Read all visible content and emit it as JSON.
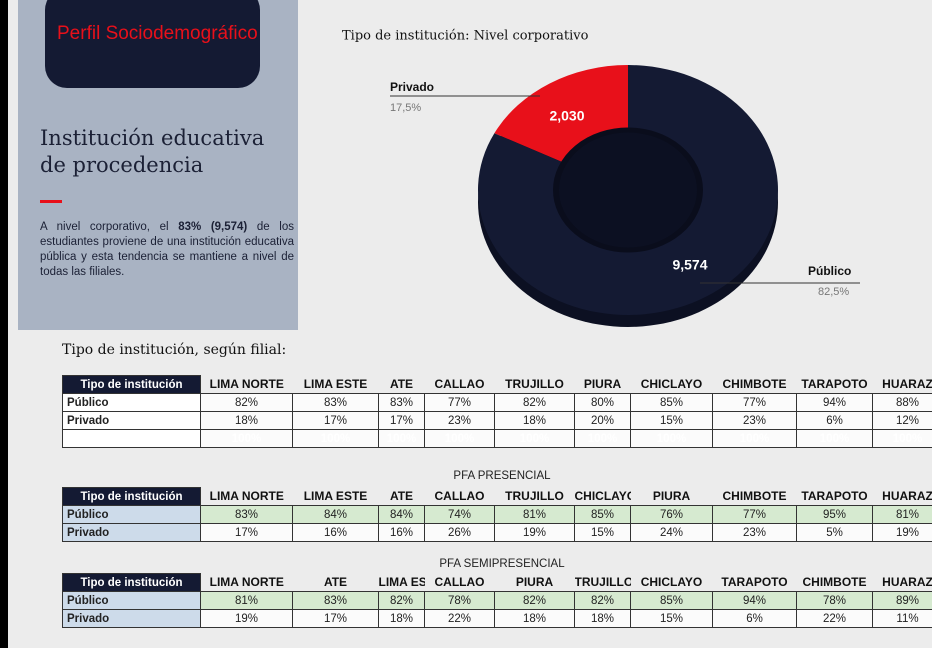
{
  "sidebar": {
    "badge": "Perfil Sociodemográfico",
    "heading": "Institución educativa de procedencia",
    "paragraph": [
      "A nivel corporativo, el ",
      "83% (9,574)",
      " de los estudiantes proviene de una institución educativa pública y esta tendencia se mantiene a nivel de todas las filiales."
    ]
  },
  "chart_data": {
    "type": "pie",
    "title": "Tipo de institución: Nivel corporativo",
    "categories": [
      "Privado",
      "Público"
    ],
    "values": [
      2030,
      9574
    ],
    "value_labels": [
      "2,030",
      "9,574"
    ],
    "shares": [
      17.5,
      82.5
    ],
    "share_labels": [
      "17,5%",
      "82,5%"
    ],
    "colors": [
      "#e8101a",
      "#141a33"
    ]
  },
  "section_title": "Tipo de institución, según filial:",
  "tables": [
    {
      "header": [
        "Tipo de institución",
        "LIMA NORTE",
        "LIMA ESTE",
        "ATE",
        "CALLAO",
        "TRUJILLO",
        "PIURA",
        "CHICLAYO",
        "CHIMBOTE",
        "TARAPOTO",
        "HUARAZ"
      ],
      "rows": [
        [
          "Público",
          "82%",
          "83%",
          "83%",
          "77%",
          "82%",
          "80%",
          "85%",
          "77%",
          "94%",
          "88%"
        ],
        [
          "Privado",
          "18%",
          "17%",
          "17%",
          "23%",
          "18%",
          "20%",
          "15%",
          "23%",
          "6%",
          "12%"
        ],
        [
          "Total general",
          "100%",
          "100%",
          "100%",
          "100%",
          "100%",
          "100%",
          "100%",
          "100%",
          "100%",
          "100%"
        ]
      ]
    },
    {
      "caption": "PFA PRESENCIAL",
      "header": [
        "Tipo de institución",
        "LIMA NORTE",
        "LIMA ESTE",
        "ATE",
        "CALLAO",
        "TRUJILLO",
        "CHICLAYO",
        "PIURA",
        "CHIMBOTE",
        "TARAPOTO",
        "HUARAZ"
      ],
      "rows": [
        [
          "Público",
          "83%",
          "84%",
          "84%",
          "74%",
          "81%",
          "85%",
          "76%",
          "77%",
          "95%",
          "81%"
        ],
        [
          "Privado",
          "17%",
          "16%",
          "16%",
          "26%",
          "19%",
          "15%",
          "24%",
          "23%",
          "5%",
          "19%"
        ]
      ]
    },
    {
      "caption": "PFA SEMIPRESENCIAL",
      "header": [
        "Tipo de institución",
        "LIMA NORTE",
        "ATE",
        "LIMA ESTE",
        "CALLAO",
        "PIURA",
        "TRUJILLO",
        "CHICLAYO",
        "TARAPOTO",
        "CHIMBOTE",
        "HUARAZ"
      ],
      "rows": [
        [
          "Público",
          "81%",
          "83%",
          "82%",
          "78%",
          "82%",
          "82%",
          "85%",
          "94%",
          "78%",
          "89%"
        ],
        [
          "Privado",
          "19%",
          "17%",
          "18%",
          "22%",
          "18%",
          "18%",
          "15%",
          "6%",
          "22%",
          "11%"
        ]
      ]
    }
  ]
}
